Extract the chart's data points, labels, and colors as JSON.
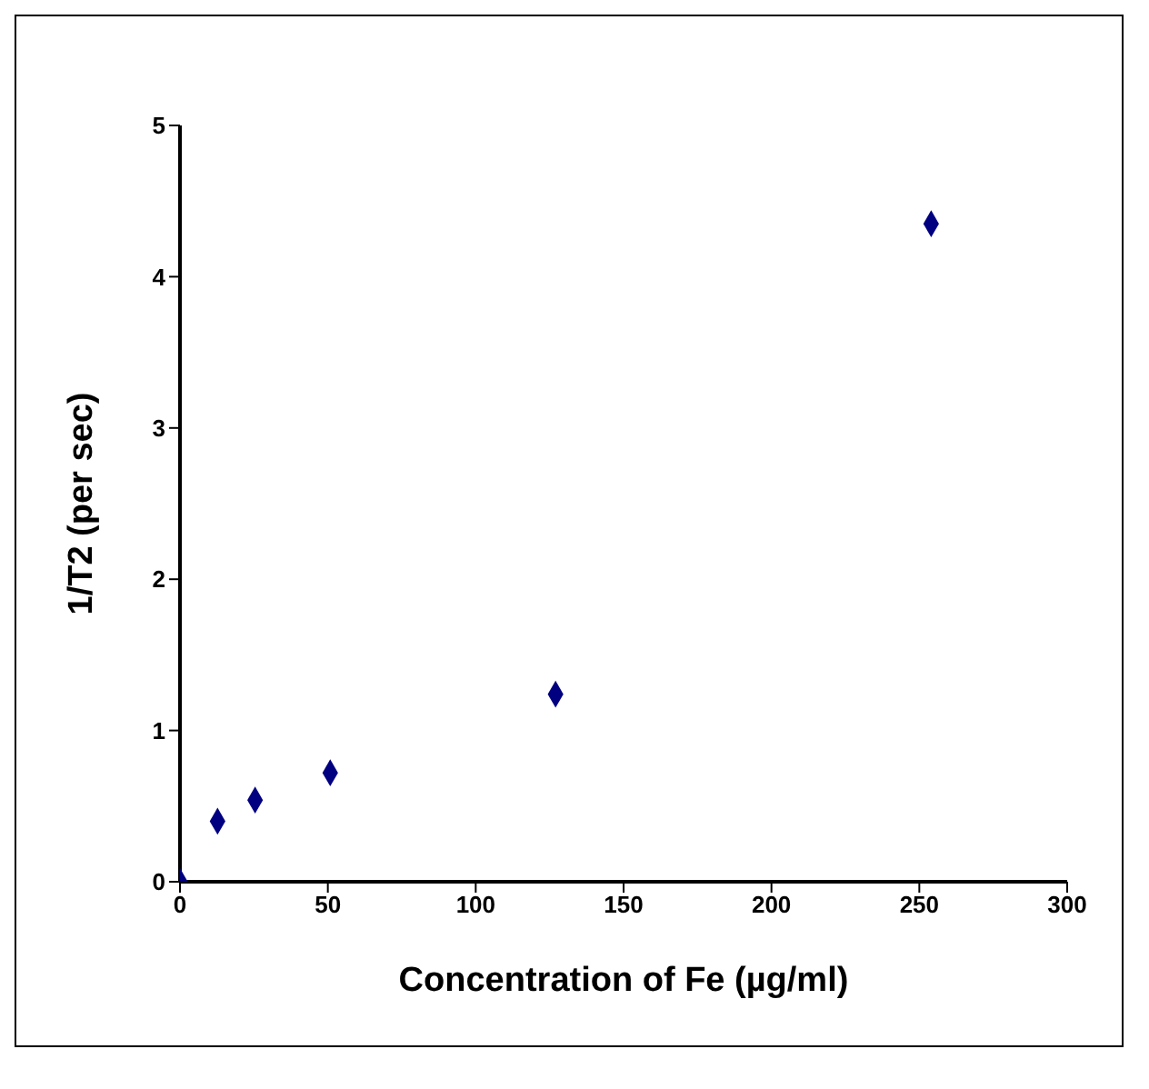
{
  "chart_data": {
    "type": "scatter",
    "xlabel": "Concentration of Fe (µg/ml)",
    "ylabel": "1/T2 (per sec)",
    "x": [
      0,
      12.7,
      25.4,
      50.8,
      127,
      254
    ],
    "series": [
      {
        "color": "#000080",
        "values": [
          0,
          0.4,
          0.54,
          0.72,
          1.24,
          4.35
        ]
      }
    ],
    "xlim": [
      0,
      300
    ],
    "xticks": [
      0,
      50,
      100,
      150,
      200,
      250,
      300
    ],
    "ylim": [
      0,
      5
    ],
    "yticks": [
      0,
      1,
      2,
      3,
      4,
      5
    ],
    "grid": false,
    "legend": false,
    "marker": "diamond"
  }
}
